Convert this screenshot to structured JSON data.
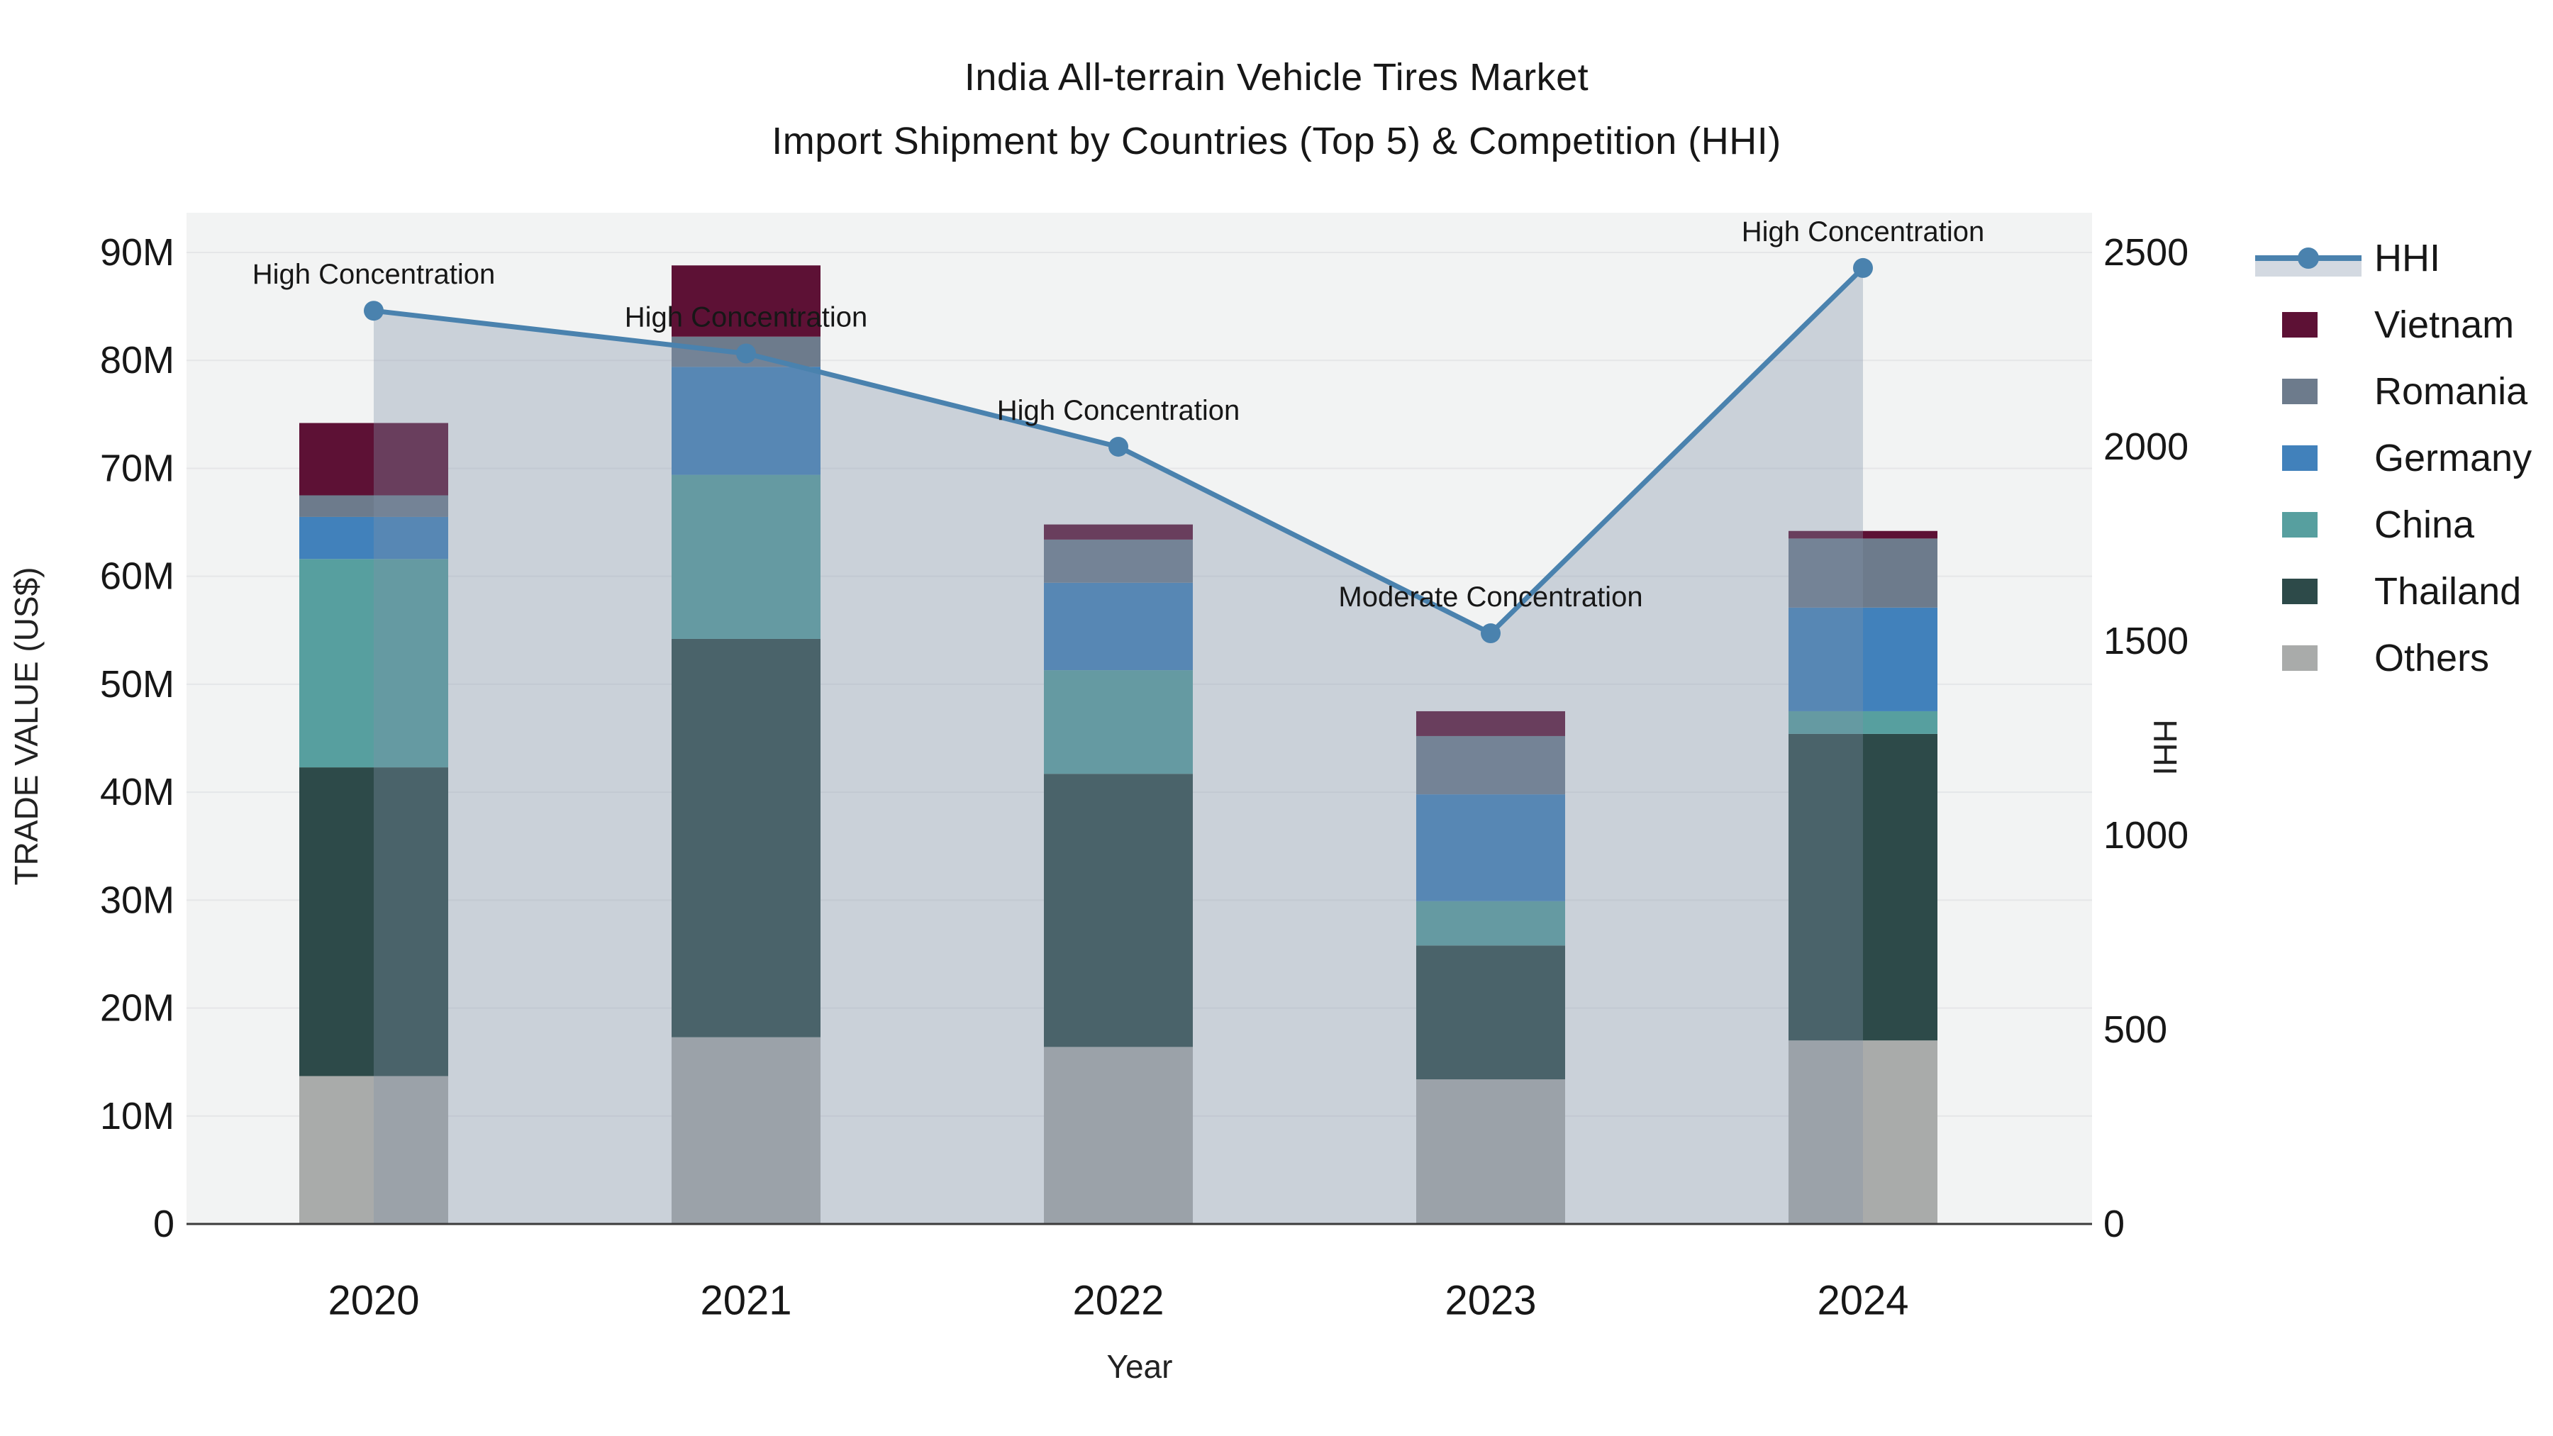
{
  "title": {
    "line1": "India All-terrain Vehicle Tires Market",
    "line2": "Import Shipment by Countries (Top 5) & Competition (HHI)"
  },
  "axes": {
    "y_left": {
      "title": "TRADE VALUE (US$)",
      "ticks": [
        "0",
        "10M",
        "20M",
        "30M",
        "40M",
        "50M",
        "60M",
        "70M",
        "80M",
        "90M"
      ],
      "tick_values": [
        0,
        10,
        20,
        30,
        40,
        50,
        60,
        70,
        80,
        90
      ]
    },
    "y_right": {
      "title": "HHI",
      "ticks": [
        "0",
        "500",
        "1000",
        "1500",
        "2000",
        "2500"
      ],
      "tick_values": [
        0,
        500,
        1000,
        1500,
        2000,
        2500
      ]
    },
    "x": {
      "title": "Year",
      "ticks": [
        "2020",
        "2021",
        "2022",
        "2023",
        "2024"
      ]
    }
  },
  "legend": {
    "items": [
      {
        "id": "hhi",
        "label": "HHI",
        "type": "line"
      },
      {
        "id": "vietnam",
        "label": "Vietnam",
        "type": "swatch",
        "color": "#5d1135"
      },
      {
        "id": "romania",
        "label": "Romania",
        "type": "swatch",
        "color": "#6d7b8c"
      },
      {
        "id": "germany",
        "label": "Germany",
        "type": "swatch",
        "color": "#4181bb"
      },
      {
        "id": "china",
        "label": "China",
        "type": "swatch",
        "color": "#579f9f"
      },
      {
        "id": "thailand",
        "label": "Thailand",
        "type": "swatch",
        "color": "#2d4a49"
      },
      {
        "id": "others",
        "label": "Others",
        "type": "swatch",
        "color": "#a9abaa"
      }
    ]
  },
  "chart_data": {
    "type": "stacked-bar-with-line",
    "categories": [
      "2020",
      "2021",
      "2022",
      "2023",
      "2024"
    ],
    "stack_order_note": "series listed bottom-to-top of the stack; values in million US$",
    "series": [
      {
        "name": "Others",
        "color": "#a9abaa",
        "values": [
          13.7,
          17.3,
          16.4,
          13.4,
          17.0
        ]
      },
      {
        "name": "Thailand",
        "color": "#2d4a49",
        "values": [
          28.6,
          36.9,
          25.3,
          12.4,
          28.4
        ]
      },
      {
        "name": "China",
        "color": "#579f9f",
        "values": [
          19.3,
          15.2,
          9.6,
          4.1,
          2.1
        ]
      },
      {
        "name": "Germany",
        "color": "#4181bb",
        "values": [
          3.9,
          10.0,
          8.1,
          9.9,
          9.6
        ]
      },
      {
        "name": "Romania",
        "color": "#6d7b8c",
        "values": [
          2.0,
          2.8,
          4.0,
          5.4,
          6.4
        ]
      },
      {
        "name": "Vietnam",
        "color": "#5d1135",
        "values": [
          6.7,
          6.6,
          1.4,
          2.3,
          0.7
        ]
      }
    ],
    "line": {
      "name": "HHI",
      "values": [
        2350,
        2240,
        2000,
        1520,
        2460
      ],
      "color": "#4a82ae",
      "area_fill": "rgba(130,145,170,0.35)"
    },
    "annotations": [
      {
        "year": "2020",
        "text": "High Concentration"
      },
      {
        "year": "2021",
        "text": "High Concentration"
      },
      {
        "year": "2022",
        "text": "High Concentration"
      },
      {
        "year": "2023",
        "text": "Moderate Concentration"
      },
      {
        "year": "2024",
        "text": "High Concentration"
      }
    ],
    "ylim_left": [
      0,
      90
    ],
    "ylim_right": [
      0,
      2500
    ],
    "units_left": "M US$",
    "colors": {
      "plot_bg": "#f2f3f3",
      "gridline": "#e5e6e8",
      "axis_line": "#3b3b3b"
    },
    "legend_position": "right",
    "grid": "horizontal-only"
  }
}
